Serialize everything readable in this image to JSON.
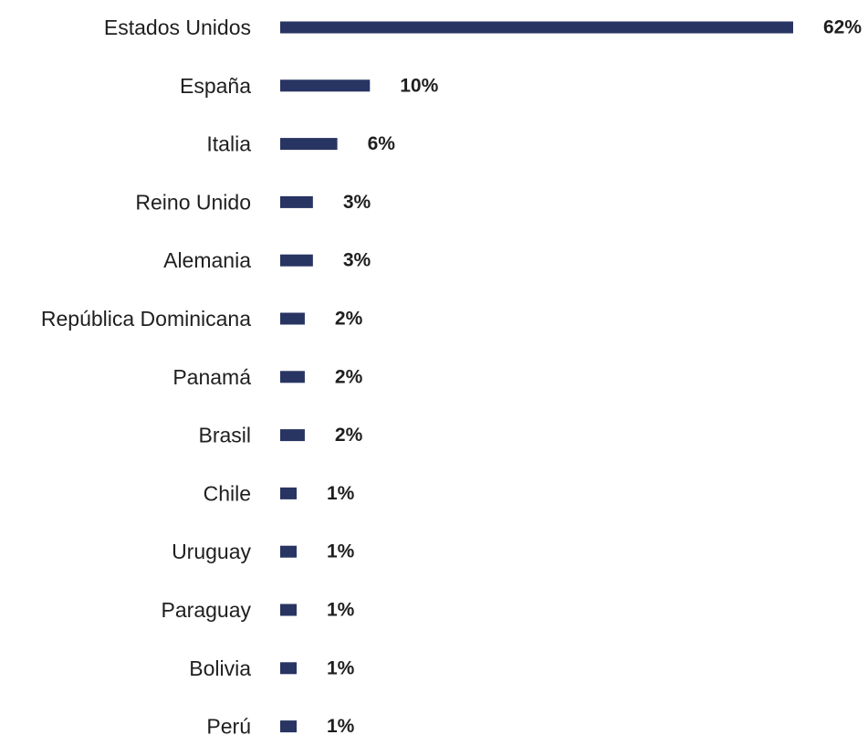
{
  "chart_data": {
    "type": "bar",
    "orientation": "horizontal",
    "categories": [
      "Estados Unidos",
      "España",
      "Italia",
      "Reino Unido",
      "Alemania",
      "República Dominicana",
      "Panamá",
      "Brasil",
      "Chile",
      "Uruguay",
      "Paraguay",
      "Bolivia",
      "Perú"
    ],
    "values": [
      62,
      10,
      6,
      3,
      3,
      2,
      2,
      2,
      1,
      1,
      1,
      1,
      1
    ],
    "value_labels": [
      "62%",
      "10%",
      "6%",
      "3%",
      "3%",
      "2%",
      "2%",
      "2%",
      "1%",
      "1%",
      "1%",
      "1%",
      "1%"
    ],
    "title": "",
    "xlabel": "",
    "ylabel": "",
    "xlim": [
      0,
      62
    ],
    "grid": false,
    "legend": "none",
    "bar_color": "#283462"
  }
}
